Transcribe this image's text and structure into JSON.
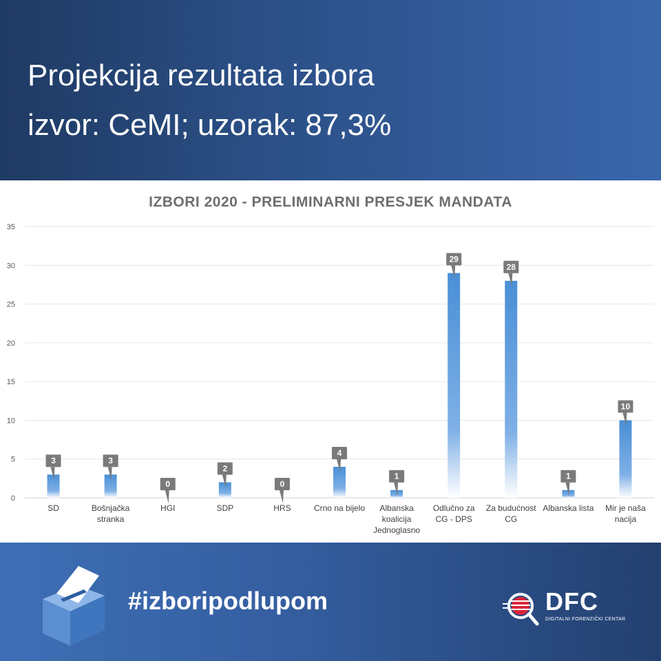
{
  "header": {
    "line1": "Projekcija rezultata izbora",
    "line2": "izvor: CeMI; uzorak: 87,3%"
  },
  "chart_data": {
    "type": "bar",
    "title": "IZBORI 2020 - PRELIMINARNI PRESJEK MANDATA",
    "categories": [
      [
        "SD"
      ],
      [
        "Bošnjačka",
        "stranka"
      ],
      [
        "HGI"
      ],
      [
        "SDP"
      ],
      [
        "HRS"
      ],
      [
        "Crno na bijelo"
      ],
      [
        "Albanska",
        "koalicija",
        "Jednoglasno"
      ],
      [
        "Odlučno za",
        "CG - DPS"
      ],
      [
        "Za budućnost",
        "CG"
      ],
      [
        "Albanska lista"
      ],
      [
        "Mir je naša",
        "nacija"
      ]
    ],
    "values": [
      3,
      3,
      0,
      2,
      0,
      4,
      1,
      29,
      28,
      1,
      10
    ],
    "ylim": [
      0,
      35
    ],
    "yticks": [
      0,
      5,
      10,
      15,
      20,
      25,
      30,
      35
    ],
    "grid": true,
    "bar_color": "#4a8fd6",
    "label_color": "#7a7a7a"
  },
  "footer": {
    "hashtag": "#izboripodlupom",
    "logo_word": "DFC",
    "logo_sub": "DIGITALNI FORENZIČKI CENTAR"
  }
}
